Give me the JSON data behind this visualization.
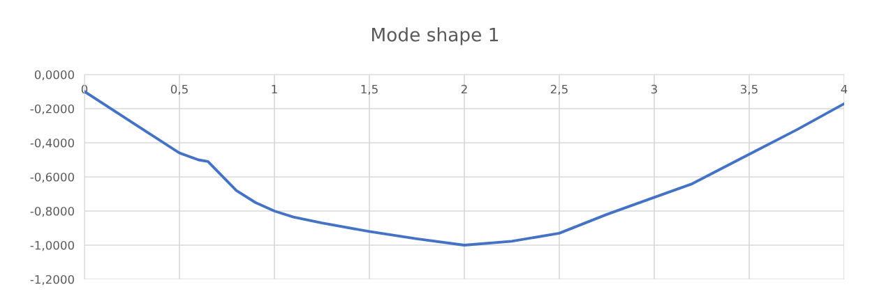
{
  "chart_data": {
    "type": "line",
    "title": "Mode shape 1",
    "x": [
      0,
      0.25,
      0.5,
      0.6,
      0.65,
      0.8,
      0.9,
      1,
      1.1,
      1.25,
      1.5,
      1.75,
      2,
      2.25,
      2.5,
      2.75,
      3,
      3.2,
      3.5,
      3.75,
      4
    ],
    "series": [
      {
        "color": "#4472c4",
        "values": [
          -0.1,
          -0.28,
          -0.46,
          -0.5,
          -0.51,
          -0.68,
          -0.75,
          -0.8,
          -0.835,
          -0.87,
          -0.92,
          -0.963,
          -1.0,
          -0.977,
          -0.93,
          -0.82,
          -0.72,
          -0.64,
          -0.467,
          -0.324,
          -0.171
        ]
      }
    ],
    "xlim": [
      0,
      4
    ],
    "ylim": [
      -1.2,
      0
    ],
    "xticks": [
      0,
      {
        "value": 0.5,
        "label": "0,5"
      },
      1,
      {
        "value": 1.5,
        "label": "1,5"
      },
      2,
      {
        "value": 2.5,
        "label": "2,5"
      },
      3,
      {
        "value": 3.5,
        "label": "3,5"
      },
      4
    ],
    "yticks": [
      {
        "value": 0,
        "label": "0,0000"
      },
      {
        "value": -0.2,
        "label": "-0,2000"
      },
      {
        "value": -0.4,
        "label": "-0,4000"
      },
      {
        "value": -0.6,
        "label": "-0,6000"
      },
      {
        "value": -0.8,
        "label": "-0,8000"
      },
      {
        "value": -1.0,
        "label": "-1,0000"
      },
      {
        "value": -1.2,
        "label": "-1,2000"
      }
    ],
    "grid": true,
    "marker": "none",
    "line_style": "solid"
  }
}
